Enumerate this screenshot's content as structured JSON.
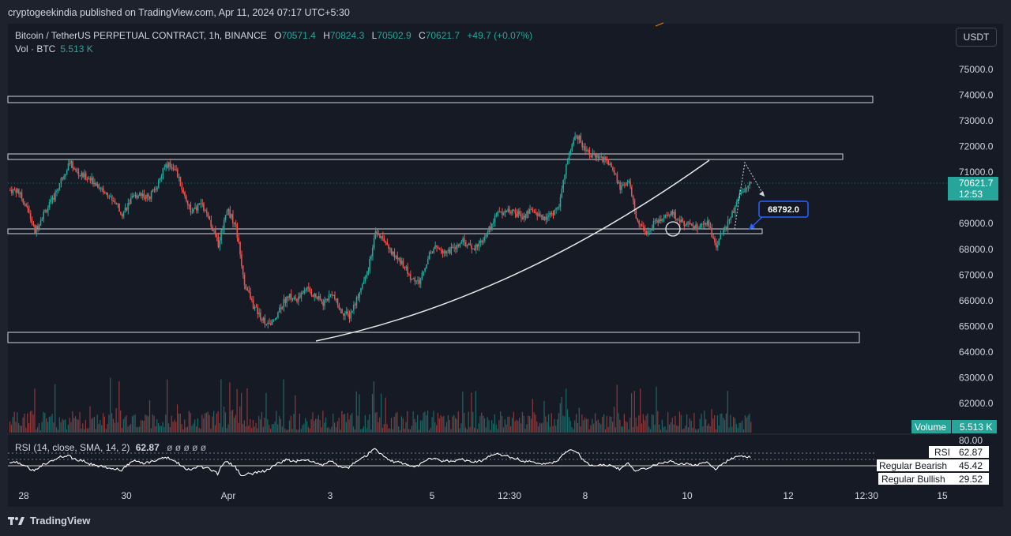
{
  "header": {
    "published": "cryptogeekindia published on TradingView.com, Apr 11, 2024 07:17 UTC+5:30"
  },
  "legend": {
    "symbol": "Bitcoin / TetherUS PERPETUAL CONTRACT, 1h, BINANCE",
    "o_label": "O",
    "o_value": "70571.4",
    "h_label": "H",
    "h_value": "70824.3",
    "l_label": "L",
    "l_value": "70502.9",
    "c_label": "C",
    "c_value": "70621.7",
    "change": "+49.7 (+0.07%)",
    "vol_label": "Vol · BTC",
    "vol_value": "5.513 K"
  },
  "currency_button": "USDT",
  "price_axis": [
    "75000.0",
    "74000.0",
    "73000.0",
    "72000.0",
    "71000.0",
    "69000.0",
    "68000.0",
    "67000.0",
    "66000.0",
    "65000.0",
    "64000.0",
    "63000.0",
    "62000.0"
  ],
  "price_badge": {
    "value": "70621.7",
    "countdown": "12:53",
    "color": "#26a69a"
  },
  "annotation_label": "68792.0",
  "volume_badge": {
    "label": "Volume",
    "value": "5.513 K"
  },
  "rsi": {
    "legend": "RSI (14, close, SMA, 14, 2)",
    "value": "62.87",
    "axis_top": "80.00",
    "badges": [
      {
        "label": "RSI",
        "value": "62.87"
      },
      {
        "label": "Regular Bearish",
        "value": "45.42"
      },
      {
        "label": "Regular Bullish",
        "value": "29.52"
      }
    ]
  },
  "time_axis": [
    "28",
    "30",
    "Apr",
    "3",
    "5",
    "12:30",
    "8",
    "10",
    "12",
    "12:30",
    "15"
  ],
  "footer": {
    "brand": "TradingView"
  },
  "colors": {
    "up": "#26a69a",
    "down": "#ef5350",
    "bg": "#161a25",
    "outer": "#1e222d",
    "box": "#d1d4dc",
    "accent": "#2962ff"
  },
  "chart_data": {
    "type": "candlestick",
    "symbol": "Bitcoin / TetherUS PERPETUAL CONTRACT",
    "interval": "1h",
    "ylim": [
      63400,
      75600
    ],
    "close_path": [
      [
        "28",
        70300
      ],
      [
        "28",
        69700
      ],
      [
        "28",
        68700
      ],
      [
        "28",
        69400
      ],
      [
        "28",
        69900
      ],
      [
        "29",
        70700
      ],
      [
        "29",
        71400
      ],
      [
        "29",
        70900
      ],
      [
        "29",
        70800
      ],
      [
        "29",
        70600
      ],
      [
        "30",
        70200
      ],
      [
        "30",
        69900
      ],
      [
        "30",
        69400
      ],
      [
        "30",
        69900
      ],
      [
        "30",
        70200
      ],
      [
        "30",
        70000
      ],
      [
        "Apr",
        70500
      ],
      [
        "Apr",
        71300
      ],
      [
        "Apr",
        71200
      ],
      [
        "Apr",
        70200
      ],
      [
        "Apr",
        69400
      ],
      [
        "2",
        69800
      ],
      [
        "2",
        69100
      ],
      [
        "2",
        68200
      ],
      [
        "2",
        69600
      ],
      [
        "2",
        68900
      ],
      [
        "2",
        66700
      ],
      [
        "2",
        65800
      ],
      [
        "2",
        65300
      ],
      [
        "3",
        65000
      ],
      [
        "3",
        65700
      ],
      [
        "3",
        66200
      ],
      [
        "3",
        66000
      ],
      [
        "3",
        66500
      ],
      [
        "3",
        66200
      ],
      [
        "3",
        65900
      ],
      [
        "4",
        66300
      ],
      [
        "4",
        65600
      ],
      [
        "4",
        65400
      ],
      [
        "4",
        66200
      ],
      [
        "4",
        67000
      ],
      [
        "5",
        68600
      ],
      [
        "5",
        68300
      ],
      [
        "5",
        67800
      ],
      [
        "5",
        67500
      ],
      [
        "5",
        66900
      ],
      [
        "5",
        66700
      ],
      [
        "6",
        67700
      ],
      [
        "6",
        68100
      ],
      [
        "6",
        67900
      ],
      [
        "6",
        68000
      ],
      [
        "6",
        68300
      ],
      [
        "6",
        68000
      ],
      [
        "6",
        68300
      ],
      [
        "7",
        68800
      ],
      [
        "7",
        69400
      ],
      [
        "7",
        69500
      ],
      [
        "7",
        69400
      ],
      [
        "7",
        69300
      ],
      [
        "7",
        69500
      ],
      [
        "7",
        69200
      ],
      [
        "7",
        69300
      ],
      [
        "7",
        69700
      ],
      [
        "8",
        71500
      ],
      [
        "8",
        72500
      ],
      [
        "8",
        71900
      ],
      [
        "8",
        71600
      ],
      [
        "8",
        71500
      ],
      [
        "8",
        71300
      ],
      [
        "8",
        70400
      ],
      [
        "9",
        70600
      ],
      [
        "9",
        69000
      ],
      [
        "9",
        68600
      ],
      [
        "9",
        69100
      ],
      [
        "9",
        69200
      ],
      [
        "9",
        69400
      ],
      [
        "9",
        69100
      ],
      [
        "10",
        68900
      ],
      [
        "10",
        68800
      ],
      [
        "10",
        69000
      ],
      [
        "10",
        68200
      ],
      [
        "10",
        68800
      ],
      [
        "10",
        69500
      ],
      [
        "10",
        70300
      ],
      [
        "10",
        70600
      ]
    ],
    "levels": [
      73900,
      71600,
      68700,
      64700
    ],
    "annotation_price": 68792.0,
    "volume_unit": "K BTC",
    "rsi_levels": {
      "top": 80.0,
      "rsi": 62.87,
      "regular_bearish": 45.42,
      "regular_bullish": 29.52
    }
  }
}
